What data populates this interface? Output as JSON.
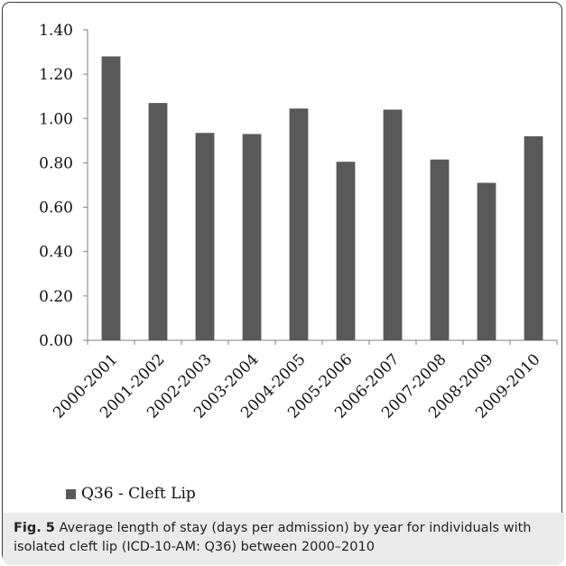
{
  "chart_data": {
    "type": "bar",
    "categories": [
      "2000-2001",
      "2001-2002",
      "2002-2003",
      "2003-2004",
      "2004-2005",
      "2005-2006",
      "2006-2007",
      "2007-2008",
      "2008-2009",
      "2009-2010"
    ],
    "series": [
      {
        "name": "Q36 - Cleft Lip",
        "values": [
          1.28,
          1.07,
          0.935,
          0.93,
          1.045,
          0.805,
          1.04,
          0.815,
          0.71,
          0.92
        ]
      }
    ],
    "ylim": [
      0,
      1.4
    ],
    "yticks": [
      "0.00",
      "0.20",
      "0.40",
      "0.60",
      "0.80",
      "1.00",
      "1.20",
      "1.40"
    ],
    "grid": false,
    "legend_position": "bottom-left",
    "bar_color": "#595959"
  },
  "legend": {
    "label": "Q36 - Cleft Lip"
  },
  "caption": {
    "label": "Fig. 5",
    "text": " Average length of stay (days per admission) by year for individuals with isolated cleft lip (ICD-10-AM: Q36) between 2000–2010"
  }
}
